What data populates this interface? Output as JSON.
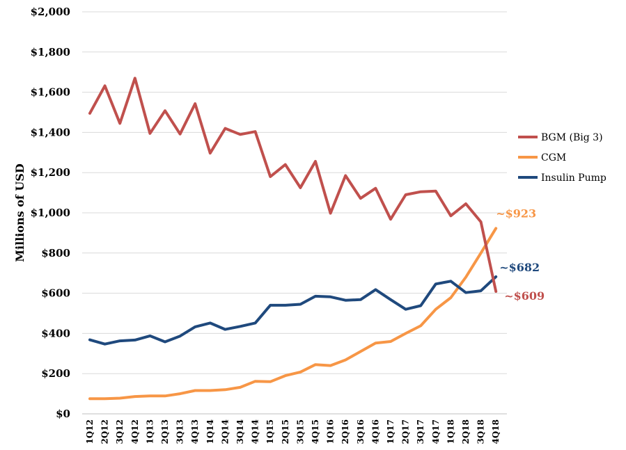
{
  "chart_data": {
    "type": "line",
    "title": "",
    "xlabel": "",
    "ylabel": "Millions of USD",
    "ylim": [
      0,
      2000
    ],
    "y_step": 200,
    "y_tick_labels": [
      "$0",
      "$200",
      "$400",
      "$600",
      "$800",
      "$1,000",
      "$1,200",
      "$1,400",
      "$1,600",
      "$1,800",
      "$2,000"
    ],
    "grid": "horizontal",
    "legend_position": "right",
    "categories": [
      "1Q12",
      "2Q12",
      "3Q12",
      "4Q12",
      "1Q13",
      "2Q13",
      "3Q13",
      "4Q13",
      "1Q14",
      "2Q14",
      "3Q14",
      "4Q14",
      "1Q15",
      "2Q15",
      "3Q15",
      "4Q15",
      "1Q16",
      "2Q16",
      "3Q16",
      "4Q16",
      "1Q17",
      "2Q17",
      "3Q17",
      "4Q17",
      "1Q18",
      "2Q18",
      "3Q18",
      "4Q18"
    ],
    "series": [
      {
        "name": "BGM (Big 3)",
        "color": "#c0504d",
        "values": [
          1495,
          1632,
          1445,
          1670,
          1395,
          1508,
          1392,
          1543,
          1297,
          1420,
          1390,
          1404,
          1180,
          1240,
          1125,
          1256,
          998,
          1185,
          1072,
          1122,
          968,
          1090,
          1105,
          1108,
          985,
          1045,
          955,
          609
        ],
        "end_label": "~$609"
      },
      {
        "name": "CGM",
        "color": "#f79646",
        "values": [
          75,
          75,
          78,
          86,
          89,
          89,
          100,
          116,
          116,
          120,
          132,
          162,
          160,
          190,
          208,
          245,
          240,
          268,
          310,
          352,
          360,
          400,
          438,
          520,
          578,
          680,
          800,
          923
        ],
        "end_label": "~$923"
      },
      {
        "name": "Insulin Pump",
        "color": "#1f497d",
        "values": [
          368,
          347,
          363,
          367,
          388,
          358,
          387,
          433,
          452,
          420,
          435,
          452,
          540,
          540,
          545,
          585,
          582,
          565,
          568,
          618,
          568,
          520,
          538,
          646,
          660,
          603,
          612,
          682
        ],
        "end_label": "~$682"
      }
    ]
  }
}
